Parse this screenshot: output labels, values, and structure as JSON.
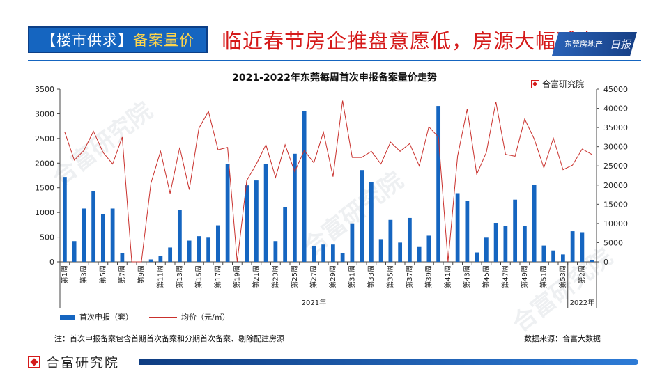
{
  "header": {
    "tag_left": "【楼市供求】",
    "tag_right": "备案量价",
    "headline": "临近春节房企推盘意愿低，房源大幅减少",
    "brand_text": "东莞房地产",
    "brand_script": "日报"
  },
  "logo": {
    "name": "合富研究院"
  },
  "notes": {
    "footnote": "注：首次申报备案包含首期首次备案和分期首次备案、剔除配建房源",
    "source": "数据来源：合富大数据"
  },
  "watermark_text": "合富研究院",
  "colors": {
    "bar": "#1565c0",
    "line": "#c9302c",
    "accent": "#d51a1a"
  },
  "chart_data": {
    "type": "bar+line",
    "title": "2021-2022年东莞每周首次申报备案量价走势",
    "categories": [
      "第1周",
      "第2周",
      "第3周",
      "第4周",
      "第5周",
      "第6周",
      "第7周",
      "第8周",
      "第9周",
      "第10周",
      "第11周",
      "第12周",
      "第13周",
      "第14周",
      "第15周",
      "第16周",
      "第17周",
      "第18周",
      "第19周",
      "第20周",
      "第21周",
      "第22周",
      "第23周",
      "第24周",
      "第25周",
      "第26周",
      "第27周",
      "第28周",
      "第29周",
      "第30周",
      "第31周",
      "第32周",
      "第33周",
      "第34周",
      "第35周",
      "第36周",
      "第37周",
      "第38周",
      "第39周",
      "第40周",
      "第41周",
      "第42周",
      "第43周",
      "第44周",
      "第45周",
      "第46周",
      "第47周",
      "第48周",
      "第49周",
      "第50周",
      "第51周",
      "第52周",
      "第53周",
      "第1周",
      "第2周",
      "第3周"
    ],
    "tick_labels": [
      "第1周",
      "第3周",
      "第5周",
      "第7周",
      "第9周",
      "第11周",
      "第13周",
      "第15周",
      "第17周",
      "第19周",
      "第21周",
      "第23周",
      "第25周",
      "第27周",
      "第29周",
      "第31周",
      "第33周",
      "第35周",
      "第37周",
      "第39周",
      "第41周",
      "第43周",
      "第45周",
      "第47周",
      "第49周",
      "第51周",
      "第53周",
      "第2周"
    ],
    "year_groups": [
      {
        "label": "2021年",
        "count": 53
      },
      {
        "label": "2022年",
        "count": 3
      }
    ],
    "series": [
      {
        "name": "首次申报（套）",
        "type": "bar",
        "axis": "left",
        "values": [
          1720,
          420,
          1080,
          1430,
          960,
          1080,
          170,
          0,
          0,
          50,
          120,
          290,
          1050,
          430,
          520,
          490,
          740,
          1980,
          0,
          1550,
          1650,
          1990,
          420,
          1110,
          2190,
          3060,
          320,
          350,
          350,
          170,
          780,
          1860,
          1620,
          460,
          850,
          390,
          890,
          300,
          530,
          3160,
          0,
          1390,
          1230,
          190,
          490,
          790,
          720,
          1260,
          730,
          1560,
          330,
          230,
          150,
          620,
          600,
          40
        ]
      },
      {
        "name": "均价（元/㎡）",
        "type": "line",
        "axis": "right",
        "values": [
          33800,
          26500,
          29000,
          34000,
          28500,
          25500,
          32500,
          0,
          0,
          20500,
          28800,
          17800,
          29800,
          18800,
          34800,
          39200,
          29200,
          29800,
          0,
          21200,
          25500,
          30500,
          22000,
          30500,
          23500,
          29000,
          25800,
          33800,
          22200,
          42000,
          27200,
          27200,
          28800,
          25500,
          31200,
          28800,
          30800,
          25000,
          35200,
          32500,
          0,
          27500,
          39800,
          22800,
          28500,
          41700,
          28000,
          27500,
          37200,
          32000,
          24500,
          32200,
          24000,
          25200,
          29400,
          28000
        ]
      }
    ],
    "ylim_left": [
      0,
      3500
    ],
    "yticks_left": [
      0,
      500,
      1000,
      1500,
      2000,
      2500,
      3000,
      3500
    ],
    "ylim_right": [
      0,
      45000
    ],
    "yticks_right": [
      0,
      5000,
      10000,
      15000,
      20000,
      25000,
      30000,
      35000,
      40000,
      45000
    ],
    "legend_position": "bottom-left",
    "grid": false
  }
}
